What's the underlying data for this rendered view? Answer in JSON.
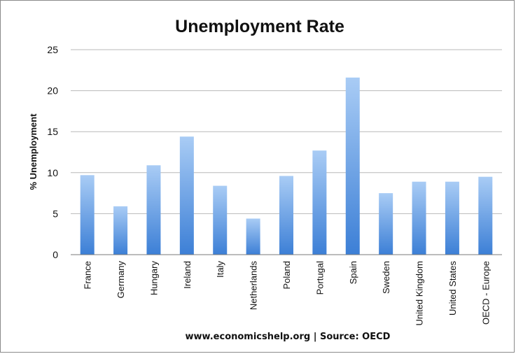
{
  "chart_data": {
    "type": "bar",
    "title": "Unemployment Rate",
    "ylabel": "% Unemployment",
    "xlabel": "",
    "footer": "www.economicshelp.org | Source: OECD",
    "ylim": [
      0,
      25
    ],
    "yticks": [
      0,
      5,
      10,
      15,
      20,
      25
    ],
    "grid": true,
    "categories": [
      "France",
      "Germany",
      "Hungary",
      "Ireland",
      "Italy",
      "Netherlands",
      "Poland",
      "Portugal",
      "Spain",
      "Sweden",
      "United Kingdom",
      "United States",
      "OECD - Europe"
    ],
    "values": [
      9.7,
      5.9,
      10.9,
      14.4,
      8.4,
      4.4,
      9.6,
      12.7,
      21.6,
      7.5,
      8.9,
      8.9,
      9.5
    ],
    "colors": {
      "bar_top": "#a9ccf5",
      "bar_bottom": "#3c7fd6",
      "grid": "#b8b8b8",
      "axis": "#7a7a7a"
    }
  }
}
